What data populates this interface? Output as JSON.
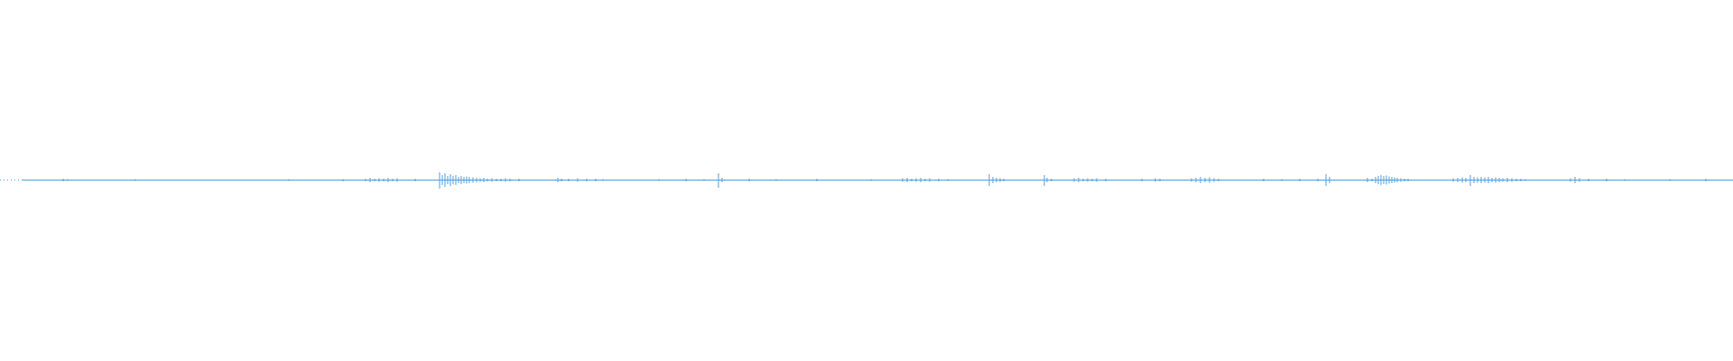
{
  "waveform": {
    "color": "#4a9fe0"
  }
}
